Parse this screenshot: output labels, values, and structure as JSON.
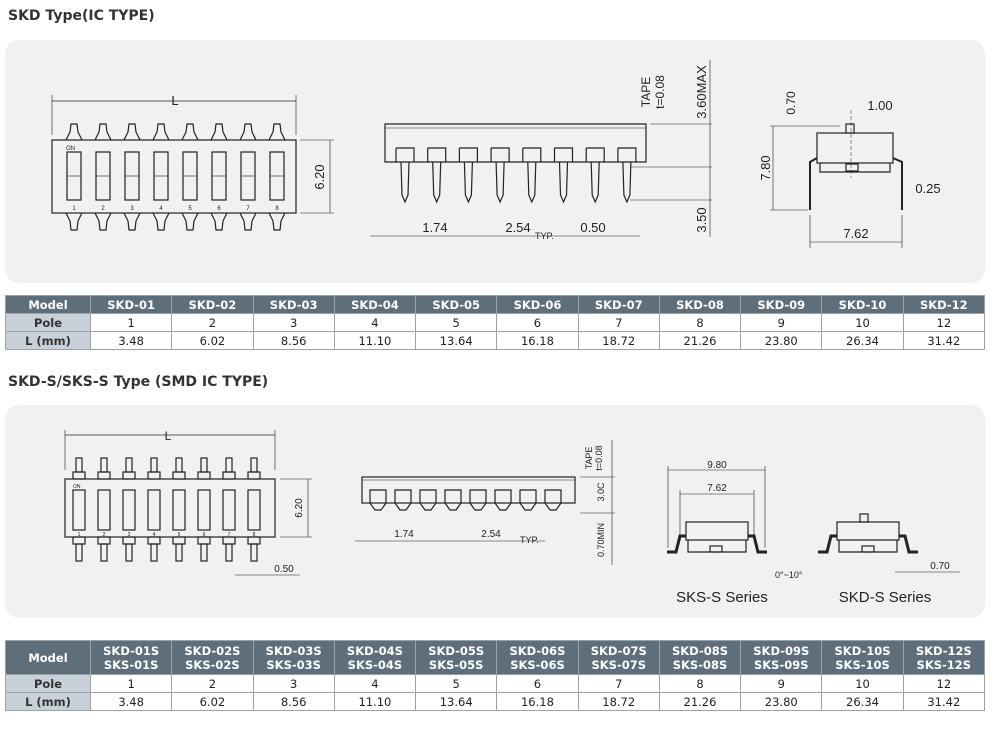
{
  "section1": {
    "title": "SKD Type(IC TYPE)",
    "dims": {
      "L": "L",
      "h620": "6.20",
      "d174": "1.74",
      "d254": "2.54",
      "typ": "TYP.",
      "d050": "0.50",
      "tape": "TAPE",
      "t008": "t=0.08",
      "d360": "3.60MAX",
      "d350": "3.50",
      "d070": "0.70",
      "d100": "1.00",
      "d780": "7.80",
      "d025": "0.25",
      "d762": "7.62",
      "on": "ON"
    },
    "table": {
      "model_label": "Model",
      "pole_label": "Pole",
      "l_label": "L (mm)",
      "models": [
        "SKD-01",
        "SKD-02",
        "SKD-03",
        "SKD-04",
        "SKD-05",
        "SKD-06",
        "SKD-07",
        "SKD-08",
        "SKD-09",
        "SKD-10",
        "SKD-12"
      ],
      "poles": [
        "1",
        "2",
        "3",
        "4",
        "5",
        "6",
        "7",
        "8",
        "9",
        "10",
        "12"
      ],
      "lengths": [
        "3.48",
        "6.02",
        "8.56",
        "11.10",
        "13.64",
        "16.18",
        "18.72",
        "21.26",
        "23.80",
        "26.34",
        "31.42"
      ]
    }
  },
  "section2": {
    "title": "SKD-S/SKS-S Type (SMD IC TYPE)",
    "dims": {
      "L": "L",
      "h620": "6.20",
      "d050": "0.50",
      "d174": "1.74",
      "d254": "2.54",
      "typ": "TYP.",
      "tape": "TAPE",
      "t008": "t=0.08",
      "d300": "3.0C",
      "d070min": "0.70MIN",
      "d980": "9.80",
      "d762": "7.62",
      "angle": "0°~10°",
      "d070": "0.70",
      "on": "ON"
    },
    "sks_label": "SKS-S Series",
    "skd_label": "SKD-S Series",
    "table": {
      "model_label": "Model",
      "pole_label": "Pole",
      "l_label": "L (mm)",
      "models_skd": [
        "SKD-01S",
        "SKD-02S",
        "SKD-03S",
        "SKD-04S",
        "SKD-05S",
        "SKD-06S",
        "SKD-07S",
        "SKD-08S",
        "SKD-09S",
        "SKD-10S",
        "SKD-12S"
      ],
      "models_sks": [
        "SKS-01S",
        "SKS-02S",
        "SKS-03S",
        "SKS-04S",
        "SKS-05S",
        "SKS-06S",
        "SKS-07S",
        "SKS-08S",
        "SKS-09S",
        "SKS-10S",
        "SKS-12S"
      ],
      "poles": [
        "1",
        "2",
        "3",
        "4",
        "5",
        "6",
        "7",
        "8",
        "9",
        "10",
        "12"
      ],
      "lengths": [
        "3.48",
        "6.02",
        "8.56",
        "11.10",
        "13.64",
        "16.18",
        "18.72",
        "21.26",
        "23.80",
        "26.34",
        "31.42"
      ]
    }
  },
  "colors": {
    "header": "#5f6e7b",
    "row_header": "#c8d0d9",
    "panel": "#f1f1f1"
  }
}
